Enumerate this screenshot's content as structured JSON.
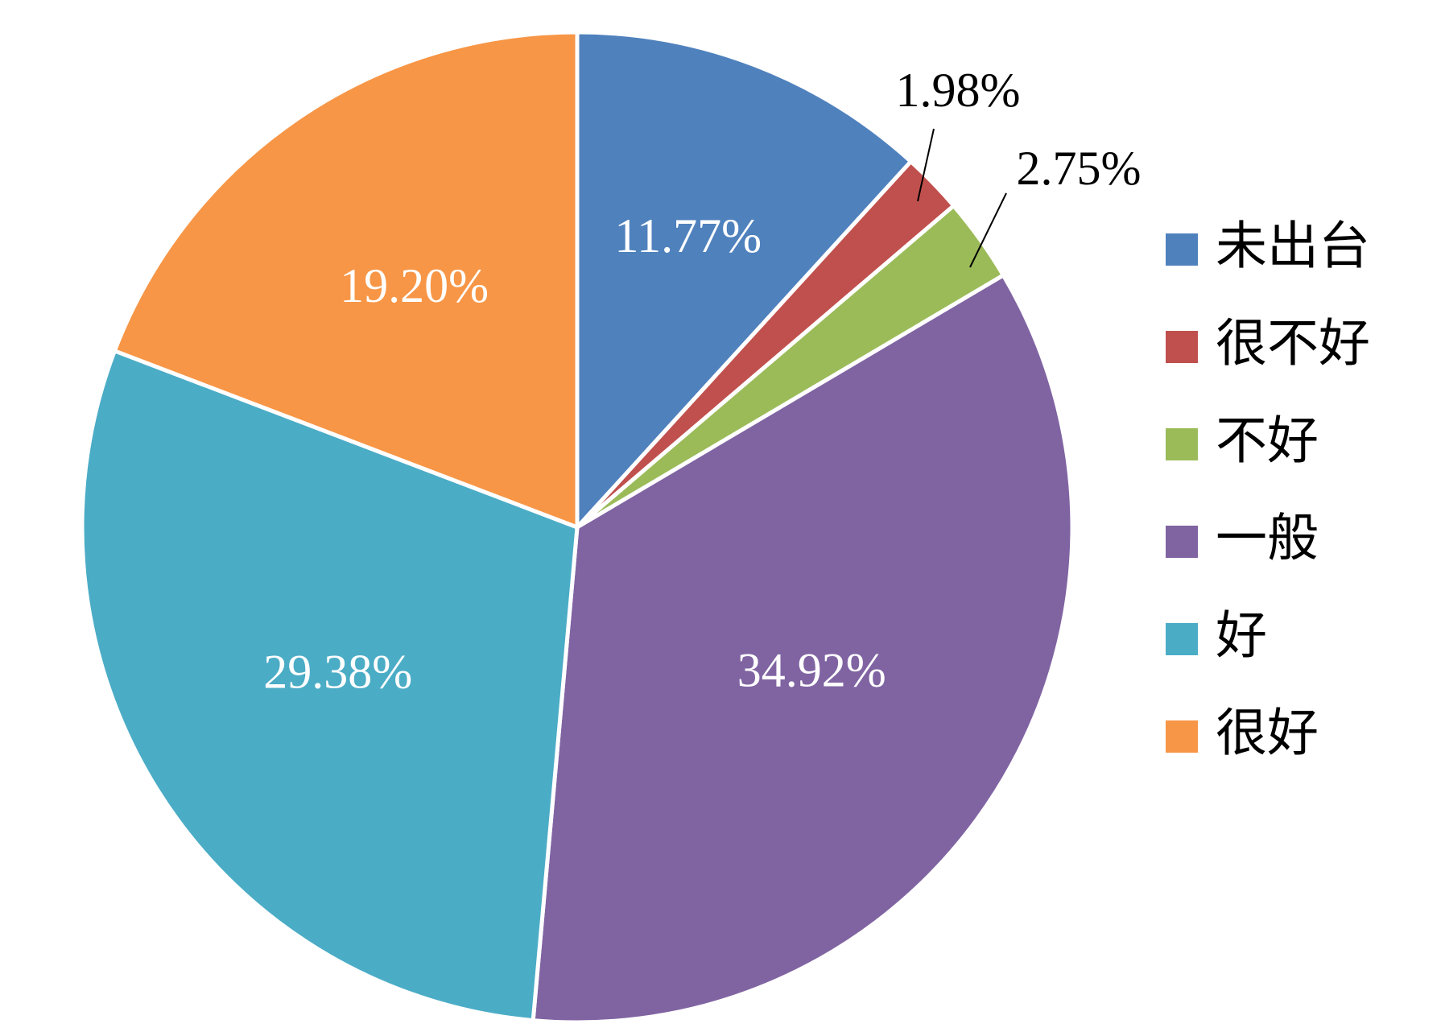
{
  "chart_data": {
    "type": "pie",
    "categories": [
      "未出台",
      "很不好",
      "不好",
      "一般",
      "好",
      "很好"
    ],
    "values": [
      11.77,
      1.98,
      2.75,
      34.92,
      29.38,
      19.2
    ],
    "labels": [
      "11.77%",
      "1.98%",
      "2.75%",
      "34.92%",
      "29.38%",
      "19.20%"
    ],
    "colors": [
      "#4F81BD",
      "#C0504D",
      "#9BBB59",
      "#8064A2",
      "#4BACC6",
      "#F79646"
    ],
    "start_angle": "12 o'clock",
    "direction": "clockwise",
    "legend": "right"
  }
}
